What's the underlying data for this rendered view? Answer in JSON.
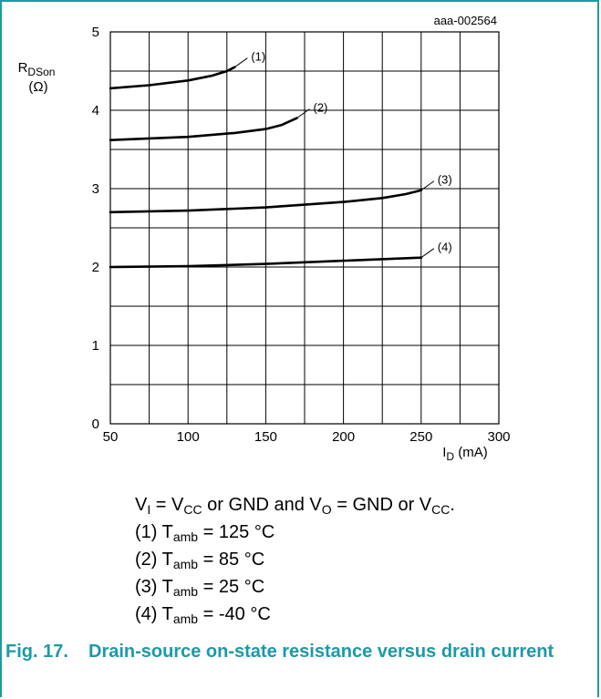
{
  "chart_data": {
    "type": "line",
    "id_label": "aaa-002564",
    "ylabel": {
      "main": "R",
      "sub": "DSon",
      "unit": "(Ω)"
    },
    "xlabel": {
      "main": "I",
      "sub": "D",
      "unit": " (mA)"
    },
    "xlim": [
      50,
      300
    ],
    "ylim": [
      0,
      5
    ],
    "xticks": [
      50,
      100,
      150,
      200,
      250,
      300
    ],
    "yticks": [
      0,
      1,
      2,
      3,
      4,
      5
    ],
    "grid": true,
    "series": [
      {
        "name": "(1)",
        "x": [
          50,
          75,
          100,
          115,
          125,
          130
        ],
        "y": [
          4.28,
          4.32,
          4.38,
          4.44,
          4.5,
          4.55
        ]
      },
      {
        "name": "(2)",
        "x": [
          50,
          100,
          130,
          150,
          160,
          170
        ],
        "y": [
          3.62,
          3.66,
          3.71,
          3.76,
          3.81,
          3.9
        ]
      },
      {
        "name": "(3)",
        "x": [
          50,
          100,
          150,
          200,
          225,
          240,
          250
        ],
        "y": [
          2.7,
          2.72,
          2.76,
          2.83,
          2.88,
          2.93,
          2.98
        ]
      },
      {
        "name": "(4)",
        "x": [
          50,
          100,
          150,
          200,
          250
        ],
        "y": [
          2.0,
          2.01,
          2.04,
          2.08,
          2.12
        ]
      }
    ]
  },
  "conditions": {
    "line0": {
      "v": "V",
      "v_sub": "I",
      "a": " = V",
      "a_sub": "CC",
      "b": " or GND and V",
      "b_sub": "O",
      "c": " = GND or V",
      "c_sub": "CC",
      "d": "."
    },
    "items": [
      {
        "prefix": "(1) T",
        "sub": "amb",
        "value": " = 125 °C"
      },
      {
        "prefix": "(2) T",
        "sub": "amb",
        "value": " = 85 °C"
      },
      {
        "prefix": "(3) T",
        "sub": "amb",
        "value": " = 25 °C"
      },
      {
        "prefix": "(4) T",
        "sub": "amb",
        "value": " = -40 °C"
      }
    ]
  },
  "caption": {
    "number": "Fig. 17.",
    "text": "Drain-source on-state resistance versus drain current"
  },
  "colors": {
    "accent": "#1c9aa6",
    "ink": "#000000"
  }
}
